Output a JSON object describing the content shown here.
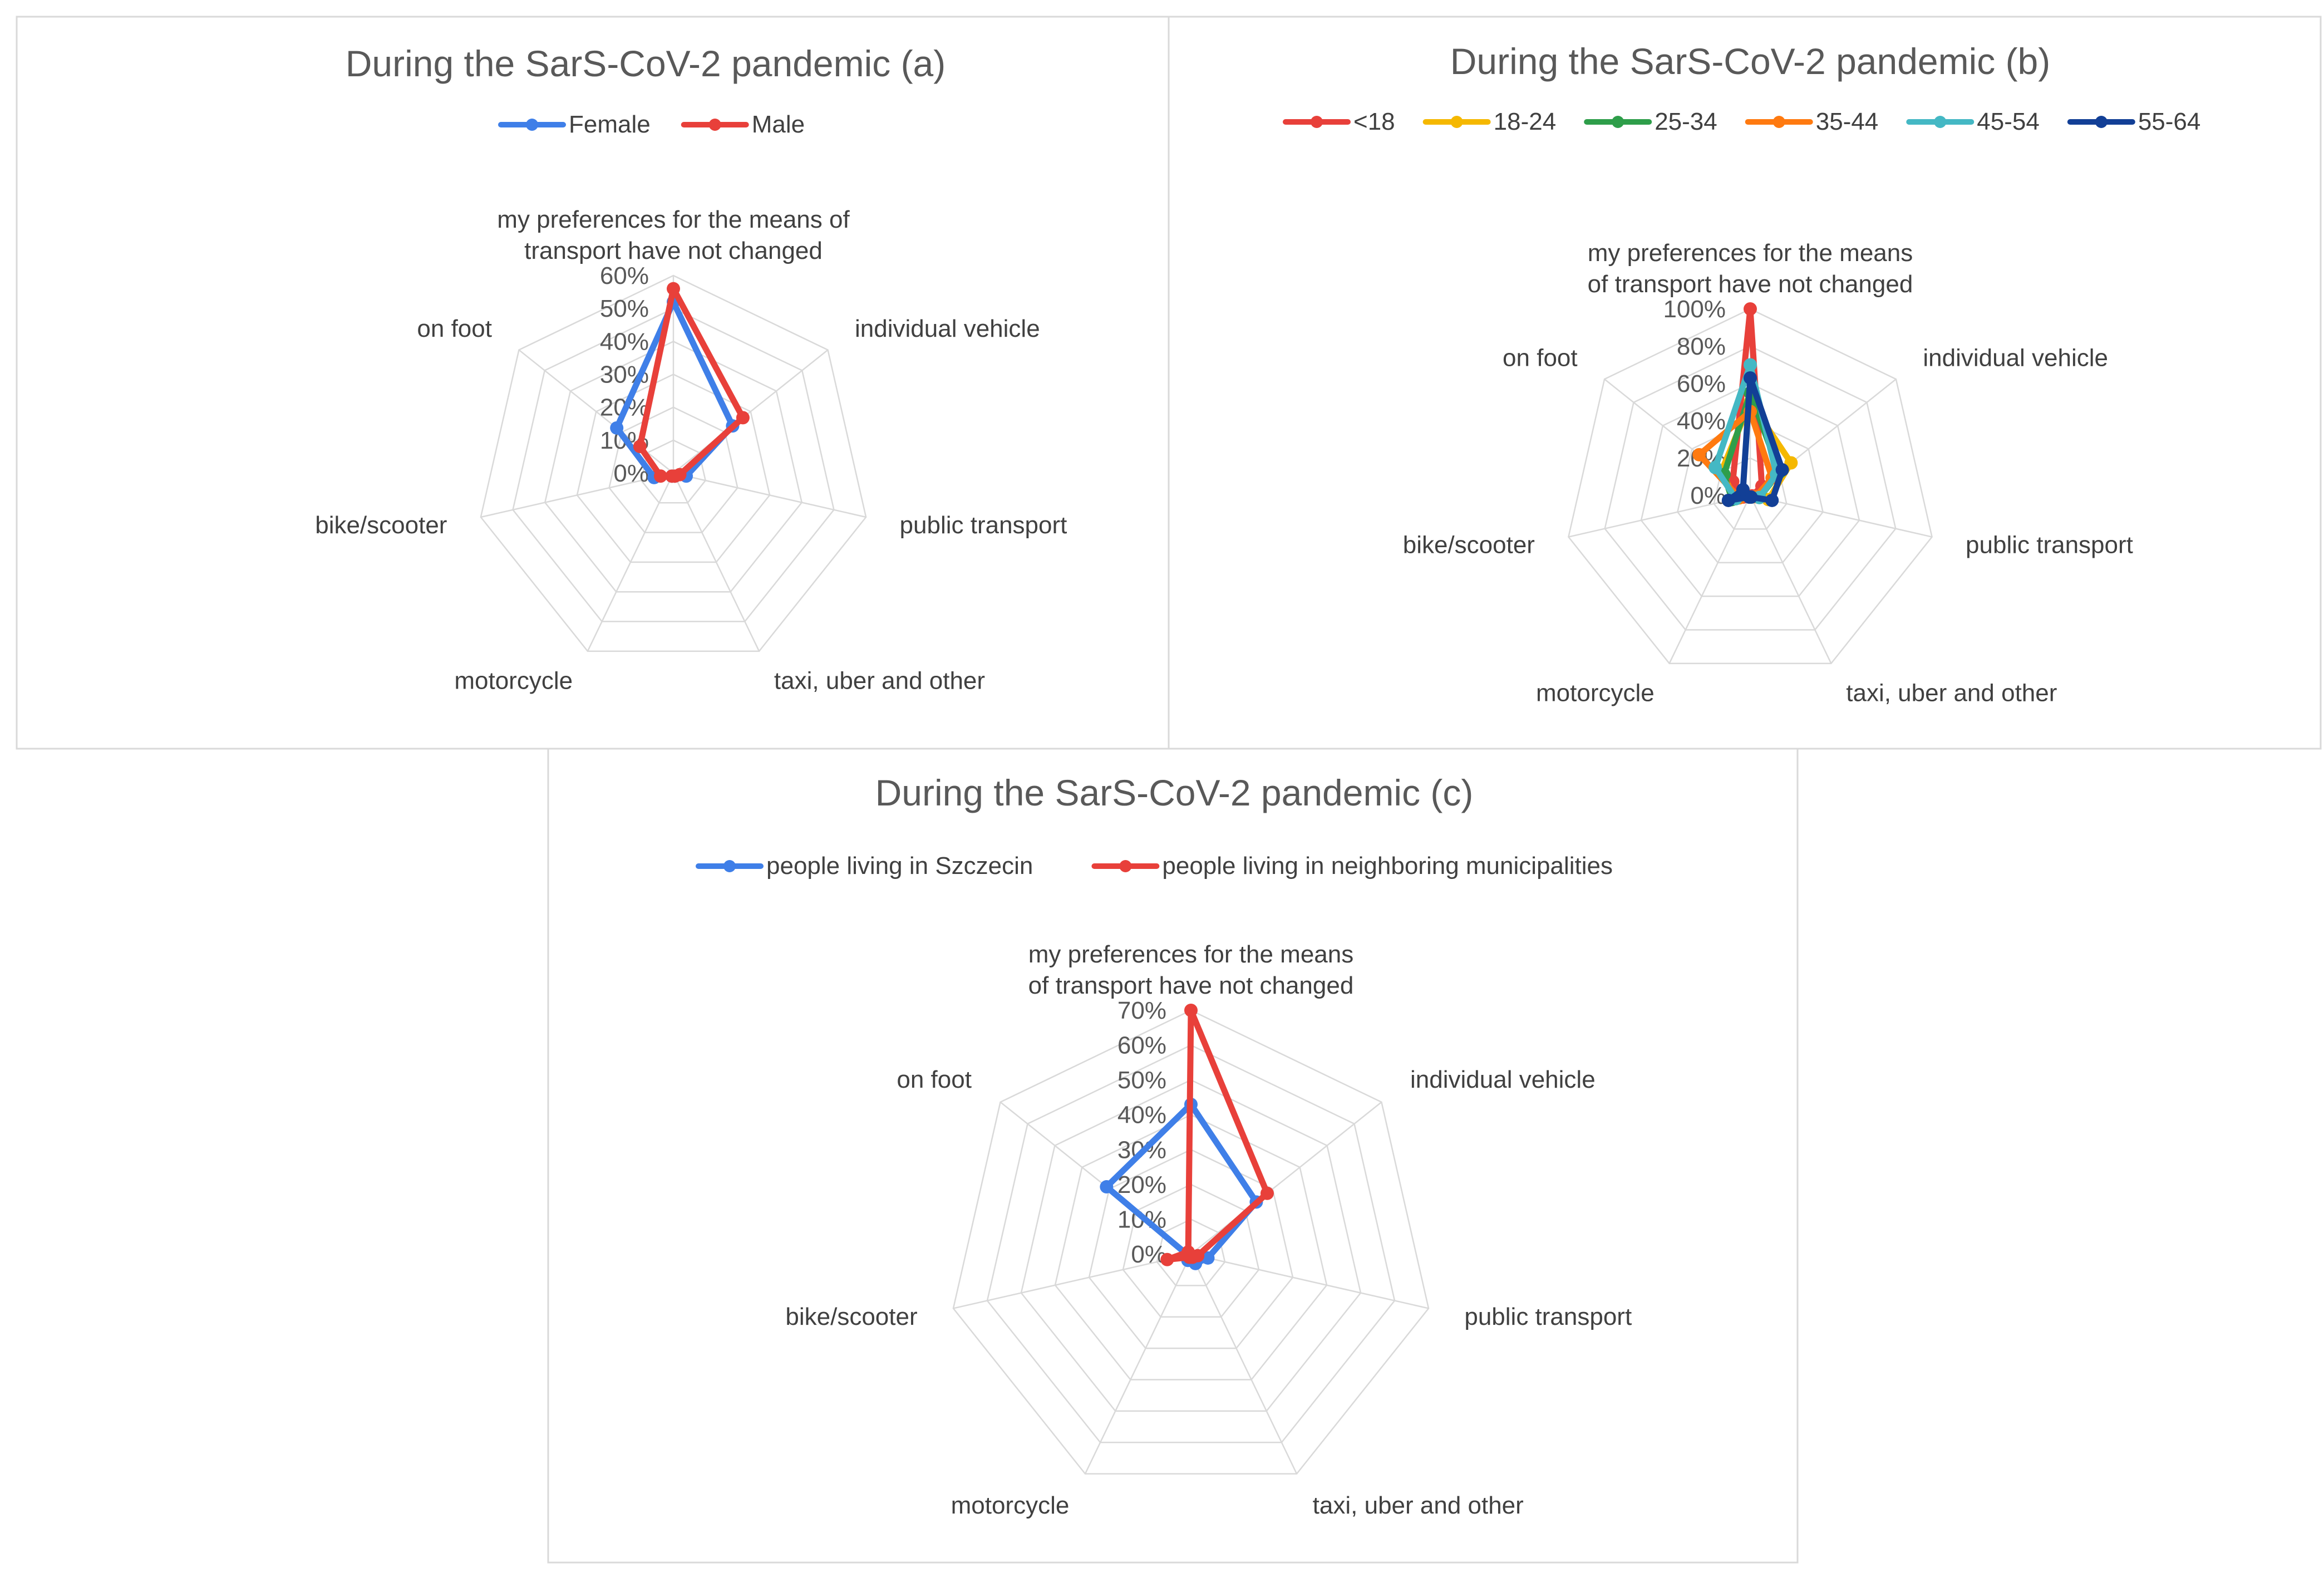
{
  "chart_data": [
    {
      "id": "a",
      "type": "radar",
      "title": "During the SarS-CoV-2 pandemic  (a)",
      "axes": [
        [
          "my preferences for the means of",
          "transport have not changed"
        ],
        [
          "individual vehicle"
        ],
        [
          "public transport"
        ],
        [
          "taxi, uber and other"
        ],
        [
          "motorcycle"
        ],
        [
          "bike/scooter"
        ],
        [
          "on foot"
        ]
      ],
      "ticks": [
        "0%",
        "10%",
        "20%",
        "30%",
        "40%",
        "50%",
        "60%"
      ],
      "max": 60,
      "legend_position": "top",
      "series": [
        {
          "name": "Female",
          "color": "#3f7fe8",
          "values": [
            52,
            23,
            4,
            1,
            1,
            6,
            22
          ]
        },
        {
          "name": "Male",
          "color": "#e8403a",
          "values": [
            56,
            27,
            2,
            1,
            1,
            4,
            13
          ]
        }
      ]
    },
    {
      "id": "b",
      "type": "radar",
      "title": "During the SarS-CoV-2 pandemic  (b)",
      "axes": [
        [
          "my preferences for the means",
          "of transport have not changed"
        ],
        [
          "individual vehicle"
        ],
        [
          "public transport"
        ],
        [
          "taxi, uber and other"
        ],
        [
          "motorcycle"
        ],
        [
          "bike/scooter"
        ],
        [
          "on foot"
        ]
      ],
      "ticks": [
        "0%",
        "20%",
        "40%",
        "60%",
        "80%",
        "100%"
      ],
      "max": 100,
      "legend_position": "top",
      "series": [
        {
          "name": "<18",
          "color": "#e8403a",
          "values": [
            100,
            8,
            1,
            1,
            1,
            4,
            12
          ]
        },
        {
          "name": "18-24",
          "color": "#f5b800",
          "values": [
            50,
            28,
            10,
            1,
            1,
            8,
            20
          ]
        },
        {
          "name": "25-34",
          "color": "#2e9e4a",
          "values": [
            55,
            20,
            5,
            1,
            1,
            10,
            18
          ]
        },
        {
          "name": "35-44",
          "color": "#ff7a10",
          "values": [
            45,
            15,
            3,
            1,
            1,
            6,
            35
          ]
        },
        {
          "name": "45-54",
          "color": "#44b8c4",
          "values": [
            70,
            18,
            5,
            1,
            1,
            8,
            24
          ]
        },
        {
          "name": "55-64",
          "color": "#123f96",
          "values": [
            63,
            22,
            12,
            1,
            1,
            12,
            5
          ]
        }
      ]
    },
    {
      "id": "c",
      "type": "radar",
      "title": "During the SarS-CoV-2 pandemic  (c)",
      "axes": [
        [
          "my preferences for the means",
          "of transport have not changed"
        ],
        [
          "individual vehicle"
        ],
        [
          "public transport"
        ],
        [
          "taxi, uber and other"
        ],
        [
          "motorcycle"
        ],
        [
          "bike/scooter"
        ],
        [
          "on foot"
        ]
      ],
      "ticks": [
        "0%",
        "10%",
        "20%",
        "30%",
        "40%",
        "50%",
        "60%",
        "70%"
      ],
      "max": 70,
      "legend_position": "top",
      "series": [
        {
          "name": "people living in Szczecin",
          "color": "#3f7fe8",
          "values": [
            43,
            24,
            5,
            3,
            2,
            1,
            31
          ]
        },
        {
          "name": "people living in neighboring municipalities",
          "color": "#e8403a",
          "values": [
            70,
            28,
            2,
            1,
            1,
            7,
            1
          ]
        }
      ]
    }
  ]
}
